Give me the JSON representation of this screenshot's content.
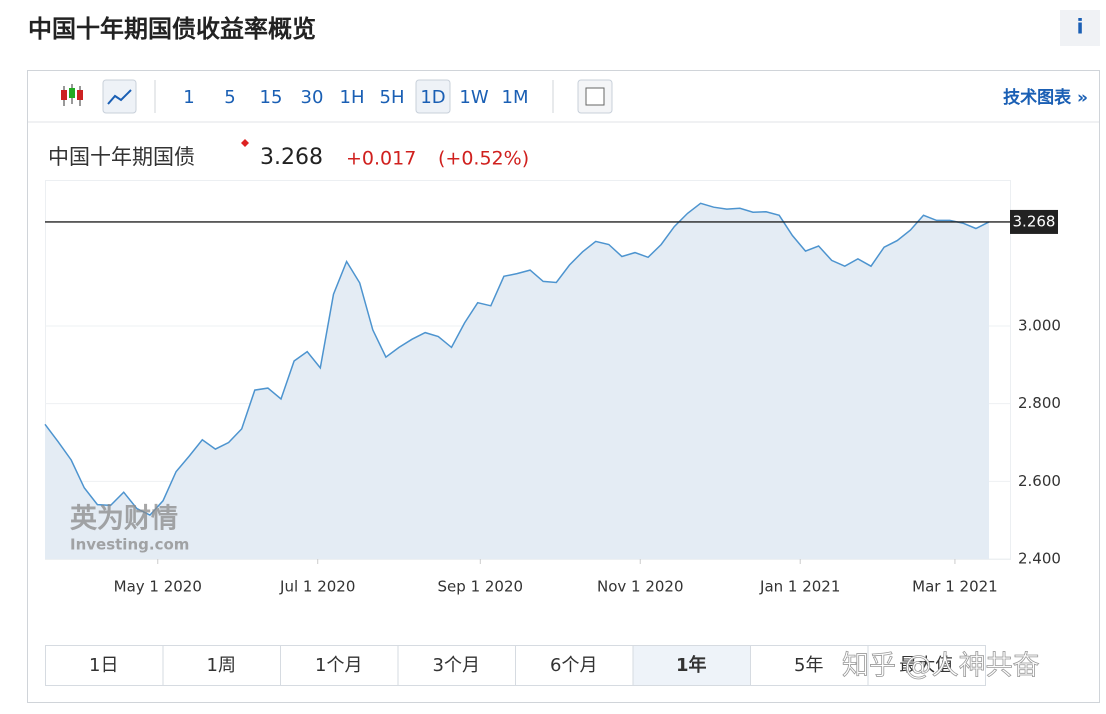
{
  "header": {
    "title": "中国十年期国债收益率概览",
    "info": "i"
  },
  "toolbar": {
    "intervals": [
      "1",
      "5",
      "15",
      "30",
      "1H",
      "5H",
      "1D",
      "1W",
      "1M"
    ],
    "selected": "1D",
    "technical": "技术图表 »"
  },
  "quote": {
    "name": "中国十年期国债",
    "price": "3.268",
    "change": "+0.017",
    "change_pct": "(+0.52%)"
  },
  "ranges": {
    "items": [
      "1日",
      "1周",
      "1个月",
      "3个月",
      "6个月",
      "1年",
      "5年",
      "最大值"
    ],
    "selected": "1年"
  },
  "watermarks": {
    "brand": "英为财情",
    "site": "Investing.com",
    "credit": "知乎 @人神共奋"
  },
  "chart_data": {
    "type": "area",
    "x": [
      "2020-03-19",
      "2020-03-24",
      "2020-03-29",
      "2020-04-03",
      "2020-04-08",
      "2020-04-13",
      "2020-04-18",
      "2020-04-23",
      "2020-04-28",
      "2020-05-03",
      "2020-05-08",
      "2020-05-13",
      "2020-05-18",
      "2020-05-23",
      "2020-05-28",
      "2020-06-02",
      "2020-06-07",
      "2020-06-12",
      "2020-06-17",
      "2020-06-22",
      "2020-06-27",
      "2020-07-02",
      "2020-07-07",
      "2020-07-12",
      "2020-07-17",
      "2020-07-22",
      "2020-07-27",
      "2020-08-01",
      "2020-08-06",
      "2020-08-11",
      "2020-08-16",
      "2020-08-21",
      "2020-08-26",
      "2020-08-31",
      "2020-09-05",
      "2020-09-10",
      "2020-09-15",
      "2020-09-20",
      "2020-09-25",
      "2020-09-30",
      "2020-10-05",
      "2020-10-10",
      "2020-10-15",
      "2020-10-20",
      "2020-10-25",
      "2020-10-30",
      "2020-11-04",
      "2020-11-09",
      "2020-11-14",
      "2020-11-19",
      "2020-11-24",
      "2020-11-29",
      "2020-12-04",
      "2020-12-09",
      "2020-12-14",
      "2020-12-19",
      "2020-12-24",
      "2020-12-29",
      "2021-01-03",
      "2021-01-08",
      "2021-01-13",
      "2021-01-18",
      "2021-01-23",
      "2021-01-28",
      "2021-02-02",
      "2021-02-07",
      "2021-02-12",
      "2021-02-17",
      "2021-02-22",
      "2021-02-27",
      "2021-03-04",
      "2021-03-09",
      "2021-03-14"
    ],
    "values": [
      2.747,
      2.702,
      2.655,
      2.583,
      2.54,
      2.538,
      2.572,
      2.53,
      2.513,
      2.55,
      2.625,
      2.665,
      2.707,
      2.683,
      2.7,
      2.735,
      2.835,
      2.84,
      2.812,
      2.91,
      2.934,
      2.892,
      3.082,
      3.166,
      3.111,
      2.99,
      2.92,
      2.945,
      2.966,
      2.983,
      2.973,
      2.945,
      3.008,
      3.06,
      3.052,
      3.128,
      3.135,
      3.144,
      3.115,
      3.112,
      3.157,
      3.191,
      3.218,
      3.21,
      3.179,
      3.189,
      3.177,
      3.21,
      3.256,
      3.29,
      3.316,
      3.306,
      3.301,
      3.303,
      3.293,
      3.294,
      3.285,
      3.233,
      3.193,
      3.206,
      3.169,
      3.154,
      3.173,
      3.154,
      3.203,
      3.22,
      3.247,
      3.285,
      3.272,
      3.272,
      3.265,
      3.251,
      3.268
    ],
    "color": "#4d94cf",
    "fill": "#e4ecf4",
    "last": 3.268,
    "last_color": "#222222",
    "xlim": [
      "2020-03-19",
      "2021-03-22"
    ],
    "xticks": [
      {
        "value": "2020-05-01",
        "label": "May 1 2020"
      },
      {
        "value": "2020-07-01",
        "label": "Jul 1 2020"
      },
      {
        "value": "2020-09-01",
        "label": "Sep 1 2020"
      },
      {
        "value": "2020-11-01",
        "label": "Nov 1 2020"
      },
      {
        "value": "2021-01-01",
        "label": "Jan 1 2021"
      },
      {
        "value": "2021-03-01",
        "label": "Mar 1 2021"
      }
    ],
    "ylim": [
      2.4,
      3.376
    ],
    "yticks": [
      {
        "value": 2.4,
        "label": "2.400"
      },
      {
        "value": 2.6,
        "label": "2.600"
      },
      {
        "value": 2.8,
        "label": "2.800"
      },
      {
        "value": 3.0,
        "label": "3.000"
      }
    ],
    "grid": true
  }
}
